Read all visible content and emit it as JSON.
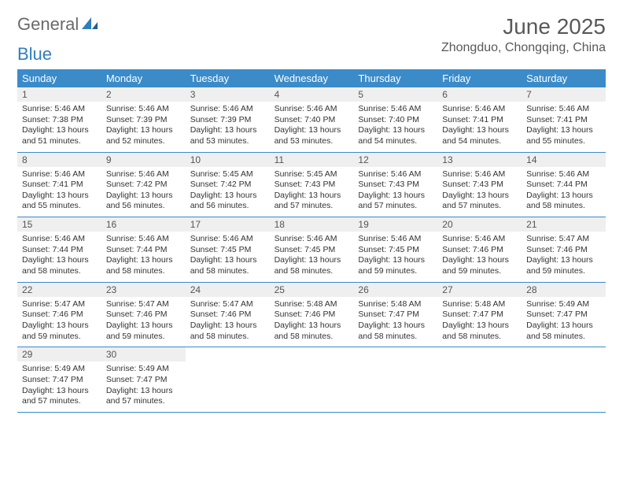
{
  "logo": {
    "text_gray": "General",
    "text_blue": "Blue"
  },
  "title": "June 2025",
  "location": "Zhongduo, Chongqing, China",
  "weekdays": [
    "Sunday",
    "Monday",
    "Tuesday",
    "Wednesday",
    "Thursday",
    "Friday",
    "Saturday"
  ],
  "colors": {
    "header_bg": "#3b8bc9",
    "header_text": "#ffffff",
    "daynum_bg": "#efefef",
    "week_border": "#3b8bc9",
    "title_color": "#595959",
    "logo_gray": "#6a6a6a",
    "logo_blue": "#2f7fbf"
  },
  "weeks": [
    [
      {
        "n": "1",
        "sr": "Sunrise: 5:46 AM",
        "ss": "Sunset: 7:38 PM",
        "d1": "Daylight: 13 hours",
        "d2": "and 51 minutes."
      },
      {
        "n": "2",
        "sr": "Sunrise: 5:46 AM",
        "ss": "Sunset: 7:39 PM",
        "d1": "Daylight: 13 hours",
        "d2": "and 52 minutes."
      },
      {
        "n": "3",
        "sr": "Sunrise: 5:46 AM",
        "ss": "Sunset: 7:39 PM",
        "d1": "Daylight: 13 hours",
        "d2": "and 53 minutes."
      },
      {
        "n": "4",
        "sr": "Sunrise: 5:46 AM",
        "ss": "Sunset: 7:40 PM",
        "d1": "Daylight: 13 hours",
        "d2": "and 53 minutes."
      },
      {
        "n": "5",
        "sr": "Sunrise: 5:46 AM",
        "ss": "Sunset: 7:40 PM",
        "d1": "Daylight: 13 hours",
        "d2": "and 54 minutes."
      },
      {
        "n": "6",
        "sr": "Sunrise: 5:46 AM",
        "ss": "Sunset: 7:41 PM",
        "d1": "Daylight: 13 hours",
        "d2": "and 54 minutes."
      },
      {
        "n": "7",
        "sr": "Sunrise: 5:46 AM",
        "ss": "Sunset: 7:41 PM",
        "d1": "Daylight: 13 hours",
        "d2": "and 55 minutes."
      }
    ],
    [
      {
        "n": "8",
        "sr": "Sunrise: 5:46 AM",
        "ss": "Sunset: 7:41 PM",
        "d1": "Daylight: 13 hours",
        "d2": "and 55 minutes."
      },
      {
        "n": "9",
        "sr": "Sunrise: 5:46 AM",
        "ss": "Sunset: 7:42 PM",
        "d1": "Daylight: 13 hours",
        "d2": "and 56 minutes."
      },
      {
        "n": "10",
        "sr": "Sunrise: 5:45 AM",
        "ss": "Sunset: 7:42 PM",
        "d1": "Daylight: 13 hours",
        "d2": "and 56 minutes."
      },
      {
        "n": "11",
        "sr": "Sunrise: 5:45 AM",
        "ss": "Sunset: 7:43 PM",
        "d1": "Daylight: 13 hours",
        "d2": "and 57 minutes."
      },
      {
        "n": "12",
        "sr": "Sunrise: 5:46 AM",
        "ss": "Sunset: 7:43 PM",
        "d1": "Daylight: 13 hours",
        "d2": "and 57 minutes."
      },
      {
        "n": "13",
        "sr": "Sunrise: 5:46 AM",
        "ss": "Sunset: 7:43 PM",
        "d1": "Daylight: 13 hours",
        "d2": "and 57 minutes."
      },
      {
        "n": "14",
        "sr": "Sunrise: 5:46 AM",
        "ss": "Sunset: 7:44 PM",
        "d1": "Daylight: 13 hours",
        "d2": "and 58 minutes."
      }
    ],
    [
      {
        "n": "15",
        "sr": "Sunrise: 5:46 AM",
        "ss": "Sunset: 7:44 PM",
        "d1": "Daylight: 13 hours",
        "d2": "and 58 minutes."
      },
      {
        "n": "16",
        "sr": "Sunrise: 5:46 AM",
        "ss": "Sunset: 7:44 PM",
        "d1": "Daylight: 13 hours",
        "d2": "and 58 minutes."
      },
      {
        "n": "17",
        "sr": "Sunrise: 5:46 AM",
        "ss": "Sunset: 7:45 PM",
        "d1": "Daylight: 13 hours",
        "d2": "and 58 minutes."
      },
      {
        "n": "18",
        "sr": "Sunrise: 5:46 AM",
        "ss": "Sunset: 7:45 PM",
        "d1": "Daylight: 13 hours",
        "d2": "and 58 minutes."
      },
      {
        "n": "19",
        "sr": "Sunrise: 5:46 AM",
        "ss": "Sunset: 7:45 PM",
        "d1": "Daylight: 13 hours",
        "d2": "and 59 minutes."
      },
      {
        "n": "20",
        "sr": "Sunrise: 5:46 AM",
        "ss": "Sunset: 7:46 PM",
        "d1": "Daylight: 13 hours",
        "d2": "and 59 minutes."
      },
      {
        "n": "21",
        "sr": "Sunrise: 5:47 AM",
        "ss": "Sunset: 7:46 PM",
        "d1": "Daylight: 13 hours",
        "d2": "and 59 minutes."
      }
    ],
    [
      {
        "n": "22",
        "sr": "Sunrise: 5:47 AM",
        "ss": "Sunset: 7:46 PM",
        "d1": "Daylight: 13 hours",
        "d2": "and 59 minutes."
      },
      {
        "n": "23",
        "sr": "Sunrise: 5:47 AM",
        "ss": "Sunset: 7:46 PM",
        "d1": "Daylight: 13 hours",
        "d2": "and 59 minutes."
      },
      {
        "n": "24",
        "sr": "Sunrise: 5:47 AM",
        "ss": "Sunset: 7:46 PM",
        "d1": "Daylight: 13 hours",
        "d2": "and 58 minutes."
      },
      {
        "n": "25",
        "sr": "Sunrise: 5:48 AM",
        "ss": "Sunset: 7:46 PM",
        "d1": "Daylight: 13 hours",
        "d2": "and 58 minutes."
      },
      {
        "n": "26",
        "sr": "Sunrise: 5:48 AM",
        "ss": "Sunset: 7:47 PM",
        "d1": "Daylight: 13 hours",
        "d2": "and 58 minutes."
      },
      {
        "n": "27",
        "sr": "Sunrise: 5:48 AM",
        "ss": "Sunset: 7:47 PM",
        "d1": "Daylight: 13 hours",
        "d2": "and 58 minutes."
      },
      {
        "n": "28",
        "sr": "Sunrise: 5:49 AM",
        "ss": "Sunset: 7:47 PM",
        "d1": "Daylight: 13 hours",
        "d2": "and 58 minutes."
      }
    ],
    [
      {
        "n": "29",
        "sr": "Sunrise: 5:49 AM",
        "ss": "Sunset: 7:47 PM",
        "d1": "Daylight: 13 hours",
        "d2": "and 57 minutes."
      },
      {
        "n": "30",
        "sr": "Sunrise: 5:49 AM",
        "ss": "Sunset: 7:47 PM",
        "d1": "Daylight: 13 hours",
        "d2": "and 57 minutes."
      },
      null,
      null,
      null,
      null,
      null
    ]
  ]
}
